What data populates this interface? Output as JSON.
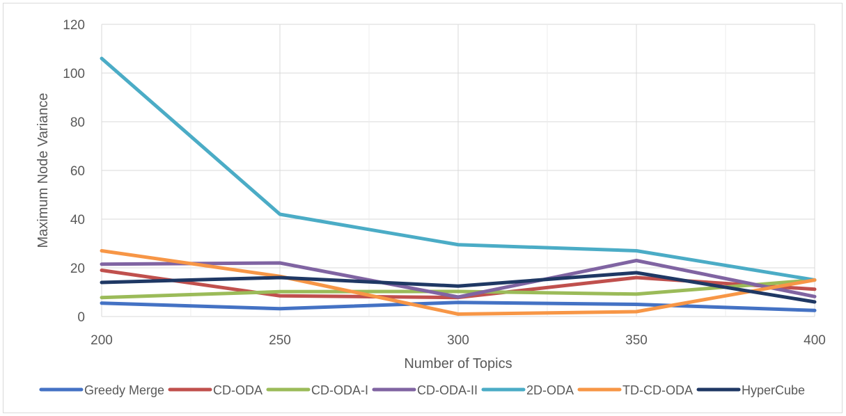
{
  "chart_data": {
    "type": "line",
    "title": "",
    "xlabel": "Number of Topics",
    "ylabel": "Maximum Node Variance",
    "x": [
      200,
      250,
      300,
      350,
      400
    ],
    "xlim": [
      200,
      400
    ],
    "ylim": [
      0,
      120
    ],
    "yticks": [
      0,
      20,
      40,
      60,
      80,
      100,
      120
    ],
    "grid": true,
    "legend_position": "bottom",
    "series": [
      {
        "name": "Greedy Merge",
        "color": "#4472C4",
        "values": [
          5.5,
          3.2,
          5.8,
          5.0,
          2.5
        ]
      },
      {
        "name": "CD-ODA",
        "color": "#C0504D",
        "values": [
          19.0,
          8.5,
          7.8,
          16.0,
          11.2
        ]
      },
      {
        "name": "CD-ODA-I",
        "color": "#9BBB59",
        "values": [
          7.8,
          10.2,
          10.3,
          9.2,
          15.0
        ]
      },
      {
        "name": "CD-ODA-II",
        "color": "#8064A2",
        "values": [
          21.5,
          22.0,
          8.0,
          23.0,
          8.2
        ]
      },
      {
        "name": "2D-ODA",
        "color": "#4BACC6",
        "values": [
          106.0,
          42.0,
          29.5,
          27.0,
          15.0
        ]
      },
      {
        "name": "TD-CD-ODA",
        "color": "#F79646",
        "values": [
          27.0,
          16.5,
          1.0,
          2.0,
          15.0
        ]
      },
      {
        "name": "HyperCube",
        "color": "#1F3864",
        "values": [
          14.0,
          16.0,
          12.5,
          18.0,
          6.0
        ]
      }
    ]
  }
}
